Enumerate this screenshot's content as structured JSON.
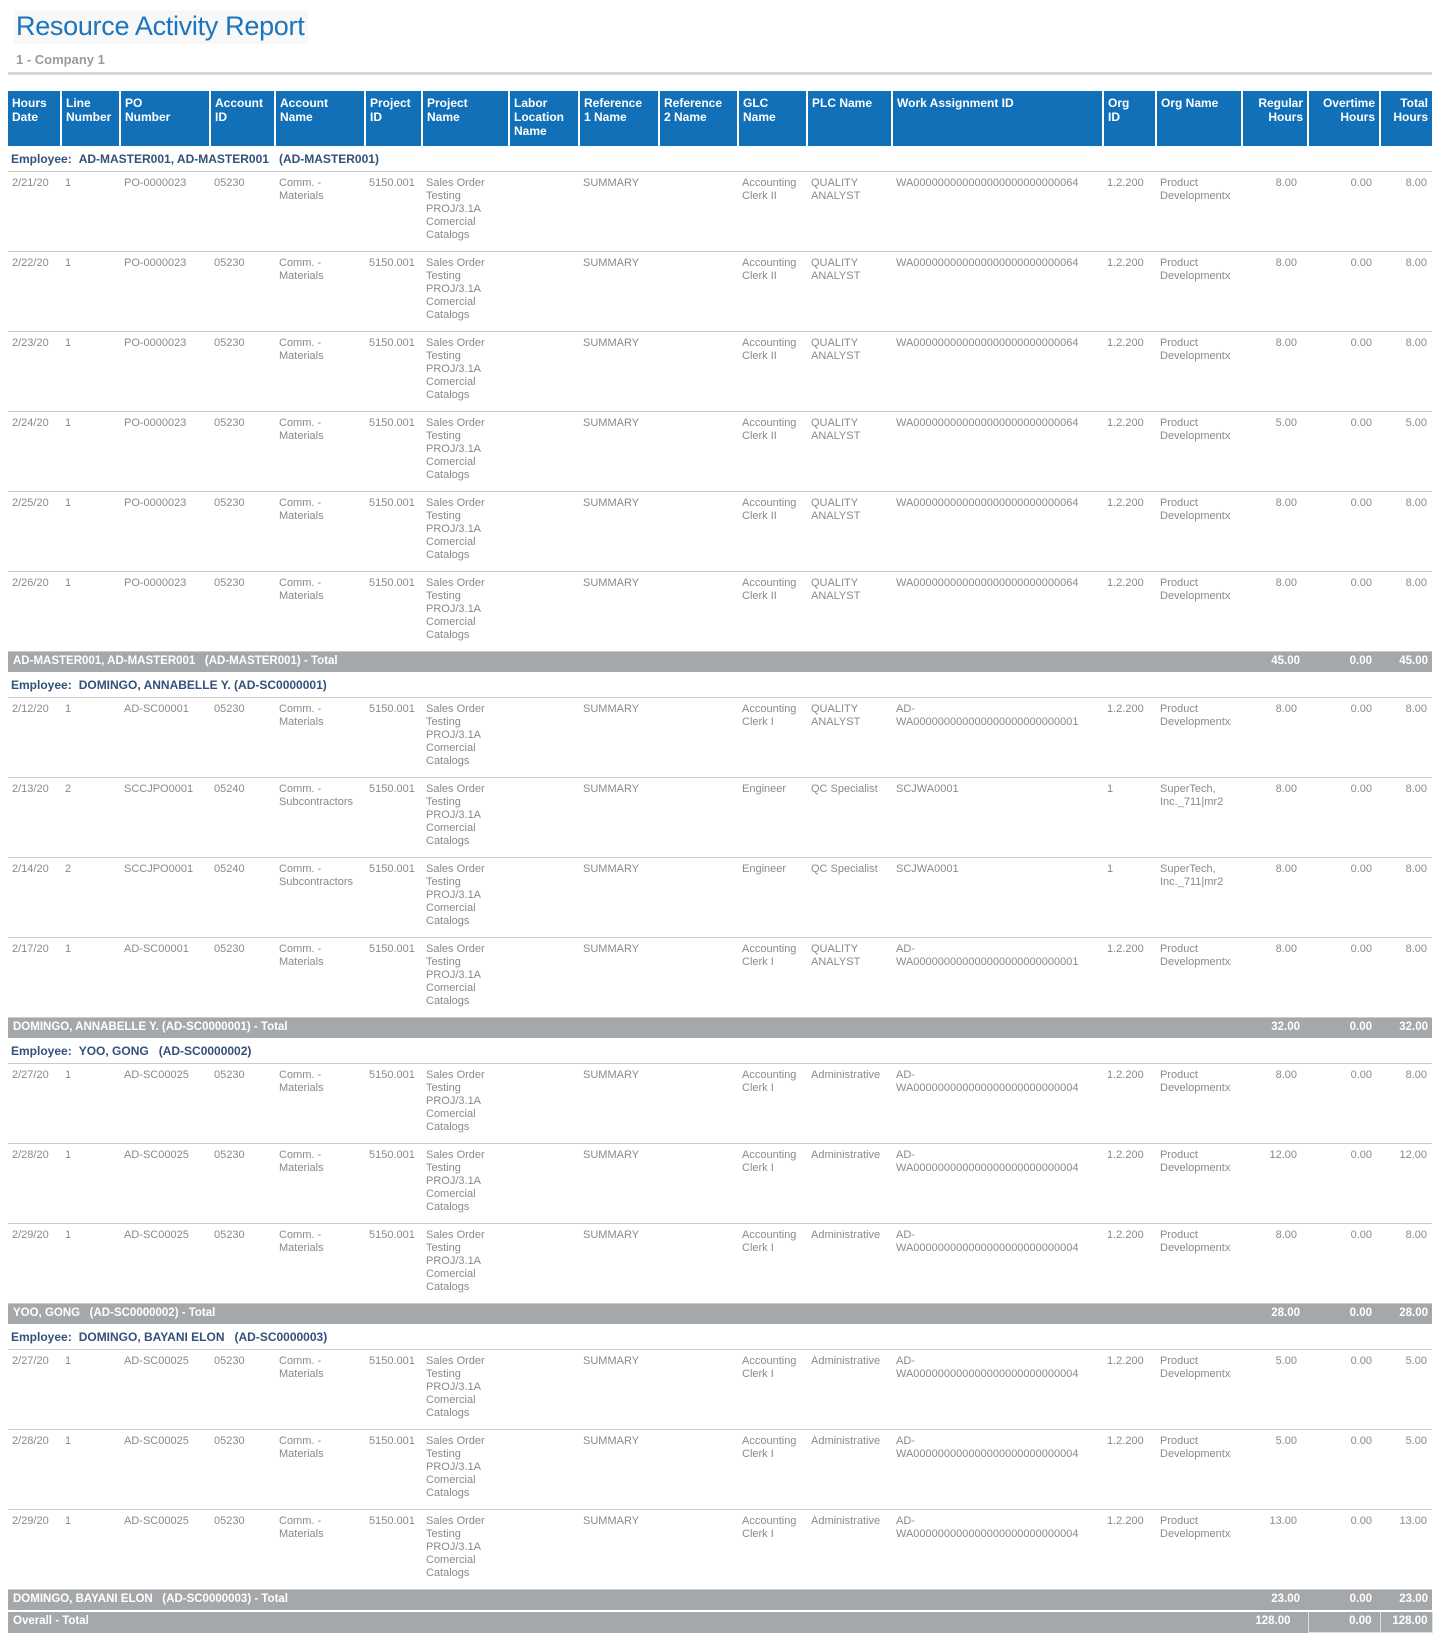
{
  "report": {
    "title": "Resource Activity Report",
    "subtitle": "1 - Company 1"
  },
  "colors": {
    "header_bg": "#1170B8",
    "title_text": "#1C75BC",
    "employee_text": "#33517B",
    "total_bar_bg": "#A5A8AB",
    "data_text": "#8A8A8A"
  },
  "table": {
    "columns": [
      "Hours\nDate",
      "Line\nNumber",
      "PO\nNumber",
      "Account\nID",
      "Account\nName",
      "Project\nID",
      "Project\nName",
      "Labor\nLocation\nName",
      "Reference\n1 Name",
      "Reference\n2 Name",
      "GLC\nName",
      "PLC Name",
      "Work Assignment ID",
      "Org\nID",
      "Org Name",
      "Regular\nHours",
      "Overtime\nHours",
      "Total\nHours"
    ],
    "groups": [
      {
        "employee_label": "Employee:",
        "employee_name": "AD-MASTER001, AD-MASTER001   (AD-MASTER001)",
        "rows": [
          {
            "hours_date": "2/21/20",
            "line_number": "1",
            "po_number": "PO-0000023",
            "account_id": "05230",
            "account_name": "Comm. - Materials",
            "project_id": "5150.001",
            "project_name": "Sales Order Testing PROJ/3.1A Comercial Catalogs",
            "labor_location_name": "",
            "reference_1_name": "SUMMARY",
            "reference_2_name": "",
            "glc_name": "Accounting Clerk II",
            "plc_name": "QUALITY ANALYST",
            "work_assignment_id": "WA000000000000000000000000064",
            "org_id": "1.2.200",
            "org_name": "Product Developmentx",
            "regular_hours": "8.00",
            "overtime_hours": "0.00",
            "total_hours": "8.00"
          },
          {
            "hours_date": "2/22/20",
            "line_number": "1",
            "po_number": "PO-0000023",
            "account_id": "05230",
            "account_name": "Comm. - Materials",
            "project_id": "5150.001",
            "project_name": "Sales Order Testing PROJ/3.1A Comercial Catalogs",
            "labor_location_name": "",
            "reference_1_name": "SUMMARY",
            "reference_2_name": "",
            "glc_name": "Accounting Clerk II",
            "plc_name": "QUALITY ANALYST",
            "work_assignment_id": "WA000000000000000000000000064",
            "org_id": "1.2.200",
            "org_name": "Product Developmentx",
            "regular_hours": "8.00",
            "overtime_hours": "0.00",
            "total_hours": "8.00"
          },
          {
            "hours_date": "2/23/20",
            "line_number": "1",
            "po_number": "PO-0000023",
            "account_id": "05230",
            "account_name": "Comm. - Materials",
            "project_id": "5150.001",
            "project_name": "Sales Order Testing PROJ/3.1A Comercial Catalogs",
            "labor_location_name": "",
            "reference_1_name": "SUMMARY",
            "reference_2_name": "",
            "glc_name": "Accounting Clerk II",
            "plc_name": "QUALITY ANALYST",
            "work_assignment_id": "WA000000000000000000000000064",
            "org_id": "1.2.200",
            "org_name": "Product Developmentx",
            "regular_hours": "8.00",
            "overtime_hours": "0.00",
            "total_hours": "8.00"
          },
          {
            "hours_date": "2/24/20",
            "line_number": "1",
            "po_number": "PO-0000023",
            "account_id": "05230",
            "account_name": "Comm. - Materials",
            "project_id": "5150.001",
            "project_name": "Sales Order Testing PROJ/3.1A Comercial Catalogs",
            "labor_location_name": "",
            "reference_1_name": "SUMMARY",
            "reference_2_name": "",
            "glc_name": "Accounting Clerk II",
            "plc_name": "QUALITY ANALYST",
            "work_assignment_id": "WA000000000000000000000000064",
            "org_id": "1.2.200",
            "org_name": "Product Developmentx",
            "regular_hours": "5.00",
            "overtime_hours": "0.00",
            "total_hours": "5.00"
          },
          {
            "hours_date": "2/25/20",
            "line_number": "1",
            "po_number": "PO-0000023",
            "account_id": "05230",
            "account_name": "Comm. - Materials",
            "project_id": "5150.001",
            "project_name": "Sales Order Testing PROJ/3.1A Comercial Catalogs",
            "labor_location_name": "",
            "reference_1_name": "SUMMARY",
            "reference_2_name": "",
            "glc_name": "Accounting Clerk II",
            "plc_name": "QUALITY ANALYST",
            "work_assignment_id": "WA000000000000000000000000064",
            "org_id": "1.2.200",
            "org_name": "Product Developmentx",
            "regular_hours": "8.00",
            "overtime_hours": "0.00",
            "total_hours": "8.00"
          },
          {
            "hours_date": "2/26/20",
            "line_number": "1",
            "po_number": "PO-0000023",
            "account_id": "05230",
            "account_name": "Comm. - Materials",
            "project_id": "5150.001",
            "project_name": "Sales Order Testing PROJ/3.1A Comercial Catalogs",
            "labor_location_name": "",
            "reference_1_name": "SUMMARY",
            "reference_2_name": "",
            "glc_name": "Accounting Clerk II",
            "plc_name": "QUALITY ANALYST",
            "work_assignment_id": "WA000000000000000000000000064",
            "org_id": "1.2.200",
            "org_name": "Product Developmentx",
            "regular_hours": "8.00",
            "overtime_hours": "0.00",
            "total_hours": "8.00"
          }
        ],
        "total_label": "AD-MASTER001, AD-MASTER001   (AD-MASTER001) - Total",
        "total": {
          "regular_hours": "45.00",
          "overtime_hours": "0.00",
          "total_hours": "45.00"
        }
      },
      {
        "employee_label": "Employee:",
        "employee_name": "DOMINGO, ANNABELLE Y. (AD-SC0000001)",
        "rows": [
          {
            "hours_date": "2/12/20",
            "line_number": "1",
            "po_number": "AD-SC00001",
            "account_id": "05230",
            "account_name": "Comm. - Materials",
            "project_id": "5150.001",
            "project_name": "Sales Order Testing PROJ/3.1A Comercial Catalogs",
            "labor_location_name": "",
            "reference_1_name": "SUMMARY",
            "reference_2_name": "",
            "glc_name": "Accounting Clerk I",
            "plc_name": "QUALITY ANALYST",
            "work_assignment_id": "AD-WA000000000000000000000000001",
            "org_id": "1.2.200",
            "org_name": "Product Developmentx",
            "regular_hours": "8.00",
            "overtime_hours": "0.00",
            "total_hours": "8.00"
          },
          {
            "hours_date": "2/13/20",
            "line_number": "2",
            "po_number": "SCCJPO0001",
            "account_id": "05240",
            "account_name": "Comm. - Subcontractors",
            "project_id": "5150.001",
            "project_name": "Sales Order Testing PROJ/3.1A Comercial Catalogs",
            "labor_location_name": "",
            "reference_1_name": "SUMMARY",
            "reference_2_name": "",
            "glc_name": "Engineer",
            "plc_name": "QC Specialist",
            "work_assignment_id": "SCJWA0001",
            "org_id": "1",
            "org_name": "SuperTech, Inc._711|mr2",
            "regular_hours": "8.00",
            "overtime_hours": "0.00",
            "total_hours": "8.00"
          },
          {
            "hours_date": "2/14/20",
            "line_number": "2",
            "po_number": "SCCJPO0001",
            "account_id": "05240",
            "account_name": "Comm. - Subcontractors",
            "project_id": "5150.001",
            "project_name": "Sales Order Testing PROJ/3.1A Comercial Catalogs",
            "labor_location_name": "",
            "reference_1_name": "SUMMARY",
            "reference_2_name": "",
            "glc_name": "Engineer",
            "plc_name": "QC Specialist",
            "work_assignment_id": "SCJWA0001",
            "org_id": "1",
            "org_name": "SuperTech, Inc._711|mr2",
            "regular_hours": "8.00",
            "overtime_hours": "0.00",
            "total_hours": "8.00"
          },
          {
            "hours_date": "2/17/20",
            "line_number": "1",
            "po_number": "AD-SC00001",
            "account_id": "05230",
            "account_name": "Comm. - Materials",
            "project_id": "5150.001",
            "project_name": "Sales Order Testing PROJ/3.1A Comercial Catalogs",
            "labor_location_name": "",
            "reference_1_name": "SUMMARY",
            "reference_2_name": "",
            "glc_name": "Accounting Clerk I",
            "plc_name": "QUALITY ANALYST",
            "work_assignment_id": "AD-WA000000000000000000000000001",
            "org_id": "1.2.200",
            "org_name": "Product Developmentx",
            "regular_hours": "8.00",
            "overtime_hours": "0.00",
            "total_hours": "8.00"
          }
        ],
        "total_label": "DOMINGO, ANNABELLE Y. (AD-SC0000001) - Total",
        "total": {
          "regular_hours": "32.00",
          "overtime_hours": "0.00",
          "total_hours": "32.00"
        }
      },
      {
        "employee_label": "Employee:",
        "employee_name": "YOO, GONG   (AD-SC0000002)",
        "rows": [
          {
            "hours_date": "2/27/20",
            "line_number": "1",
            "po_number": "AD-SC00025",
            "account_id": "05230",
            "account_name": "Comm. - Materials",
            "project_id": "5150.001",
            "project_name": "Sales Order Testing PROJ/3.1A Comercial Catalogs",
            "labor_location_name": "",
            "reference_1_name": "SUMMARY",
            "reference_2_name": "",
            "glc_name": "Accounting Clerk I",
            "plc_name": "Administrative",
            "work_assignment_id": "AD-WA000000000000000000000000004",
            "org_id": "1.2.200",
            "org_name": "Product Developmentx",
            "regular_hours": "8.00",
            "overtime_hours": "0.00",
            "total_hours": "8.00"
          },
          {
            "hours_date": "2/28/20",
            "line_number": "1",
            "po_number": "AD-SC00025",
            "account_id": "05230",
            "account_name": "Comm. - Materials",
            "project_id": "5150.001",
            "project_name": "Sales Order Testing PROJ/3.1A Comercial Catalogs",
            "labor_location_name": "",
            "reference_1_name": "SUMMARY",
            "reference_2_name": "",
            "glc_name": "Accounting Clerk I",
            "plc_name": "Administrative",
            "work_assignment_id": "AD-WA000000000000000000000000004",
            "org_id": "1.2.200",
            "org_name": "Product Developmentx",
            "regular_hours": "12.00",
            "overtime_hours": "0.00",
            "total_hours": "12.00"
          },
          {
            "hours_date": "2/29/20",
            "line_number": "1",
            "po_number": "AD-SC00025",
            "account_id": "05230",
            "account_name": "Comm. - Materials",
            "project_id": "5150.001",
            "project_name": "Sales Order Testing PROJ/3.1A Comercial Catalogs",
            "labor_location_name": "",
            "reference_1_name": "SUMMARY",
            "reference_2_name": "",
            "glc_name": "Accounting Clerk I",
            "plc_name": "Administrative",
            "work_assignment_id": "AD-WA000000000000000000000000004",
            "org_id": "1.2.200",
            "org_name": "Product Developmentx",
            "regular_hours": "8.00",
            "overtime_hours": "0.00",
            "total_hours": "8.00"
          }
        ],
        "total_label": "YOO, GONG   (AD-SC0000002) - Total",
        "total": {
          "regular_hours": "28.00",
          "overtime_hours": "0.00",
          "total_hours": "28.00"
        }
      },
      {
        "employee_label": "Employee:",
        "employee_name": "DOMINGO, BAYANI ELON   (AD-SC0000003)",
        "rows": [
          {
            "hours_date": "2/27/20",
            "line_number": "1",
            "po_number": "AD-SC00025",
            "account_id": "05230",
            "account_name": "Comm. - Materials",
            "project_id": "5150.001",
            "project_name": "Sales Order Testing PROJ/3.1A Comercial Catalogs",
            "labor_location_name": "",
            "reference_1_name": "SUMMARY",
            "reference_2_name": "",
            "glc_name": "Accounting Clerk I",
            "plc_name": "Administrative",
            "work_assignment_id": "AD-WA000000000000000000000000004",
            "org_id": "1.2.200",
            "org_name": "Product Developmentx",
            "regular_hours": "5.00",
            "overtime_hours": "0.00",
            "total_hours": "5.00"
          },
          {
            "hours_date": "2/28/20",
            "line_number": "1",
            "po_number": "AD-SC00025",
            "account_id": "05230",
            "account_name": "Comm. - Materials",
            "project_id": "5150.001",
            "project_name": "Sales Order Testing PROJ/3.1A Comercial Catalogs",
            "labor_location_name": "",
            "reference_1_name": "SUMMARY",
            "reference_2_name": "",
            "glc_name": "Accounting Clerk I",
            "plc_name": "Administrative",
            "work_assignment_id": "AD-WA000000000000000000000000004",
            "org_id": "1.2.200",
            "org_name": "Product Developmentx",
            "regular_hours": "5.00",
            "overtime_hours": "0.00",
            "total_hours": "5.00"
          },
          {
            "hours_date": "2/29/20",
            "line_number": "1",
            "po_number": "AD-SC00025",
            "account_id": "05230",
            "account_name": "Comm. - Materials",
            "project_id": "5150.001",
            "project_name": "Sales Order Testing PROJ/3.1A Comercial Catalogs",
            "labor_location_name": "",
            "reference_1_name": "SUMMARY",
            "reference_2_name": "",
            "glc_name": "Accounting Clerk I",
            "plc_name": "Administrative",
            "work_assignment_id": "AD-WA000000000000000000000000004",
            "org_id": "1.2.200",
            "org_name": "Product Developmentx",
            "regular_hours": "13.00",
            "overtime_hours": "0.00",
            "total_hours": "13.00"
          }
        ],
        "total_label": "DOMINGO, BAYANI ELON   (AD-SC0000003) - Total",
        "total": {
          "regular_hours": "23.00",
          "overtime_hours": "0.00",
          "total_hours": "23.00"
        }
      }
    ],
    "overall": {
      "label": "Overall - Total",
      "regular_hours": "128.00",
      "overtime_hours": "0.00",
      "total_hours": "128.00"
    }
  }
}
